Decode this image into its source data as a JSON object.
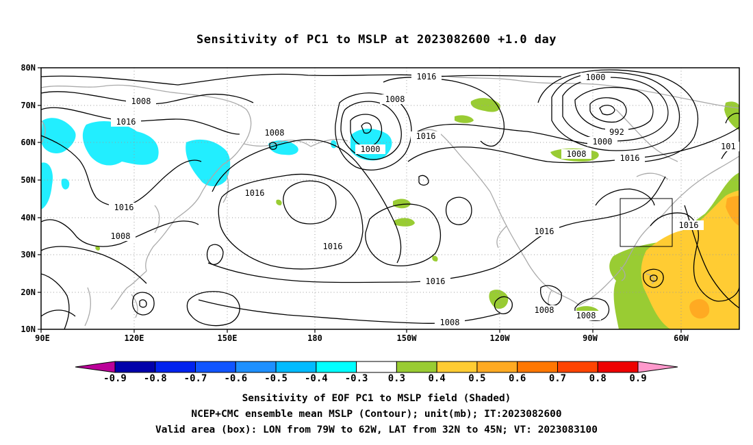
{
  "title": "Sensitivity of PC1 to MSLP at 2023082600 +1.0 day",
  "map": {
    "lat_labels": [
      "80N",
      "70N",
      "60N",
      "50N",
      "40N",
      "30N",
      "20N",
      "10N"
    ],
    "lon_labels": [
      "90E",
      "120E",
      "150E",
      "180",
      "150W",
      "120W",
      "90W",
      "60W"
    ],
    "contour_labels": [
      {
        "text": "1016"
      },
      {
        "text": "1008"
      },
      {
        "text": "1000"
      },
      {
        "text": "1008"
      },
      {
        "text": "1016"
      },
      {
        "text": "1008"
      },
      {
        "text": "1016"
      },
      {
        "text": "1000"
      },
      {
        "text": "992"
      },
      {
        "text": "1000"
      },
      {
        "text": "1008"
      },
      {
        "text": "1016"
      },
      {
        "text": "101"
      },
      {
        "text": "1016"
      },
      {
        "text": "1016"
      },
      {
        "text": "1016"
      },
      {
        "text": "1016"
      },
      {
        "text": "1016"
      },
      {
        "text": "1008"
      },
      {
        "text": "1008"
      },
      {
        "text": "1008"
      },
      {
        "text": "1008"
      },
      {
        "text": "1016"
      }
    ],
    "valid_box": {
      "lon_min": -79,
      "lon_max": -62,
      "lat_min": 32,
      "lat_max": 45
    }
  },
  "colorbar": {
    "labels": [
      "-0.9",
      "-0.8",
      "-0.7",
      "-0.6",
      "-0.5",
      "-0.4",
      "-0.3",
      "0.3",
      "0.4",
      "0.5",
      "0.6",
      "0.7",
      "0.8",
      "0.9"
    ],
    "colors": [
      "#0000aa",
      "#0022ee",
      "#1155ff",
      "#1e90ff",
      "#00bbff",
      "#00ffff",
      "#ffffff",
      "#99cc33",
      "#ffcc33",
      "#ffaa22",
      "#ff7700",
      "#ff4400",
      "#ee0000"
    ],
    "min_arrow_color": "#bb0099",
    "max_arrow_color": "#ff99cc"
  },
  "caption": {
    "line1": "Sensitivity of EOF PC1 to MSLP field (Shaded)",
    "line2": "NCEP+CMC ensemble mean MSLP (Contour); unit(mb); IT:2023082600",
    "line3": "Valid area (box): LON from 79W to 62W, LAT from 32N to 45N; VT: 2023083100"
  }
}
